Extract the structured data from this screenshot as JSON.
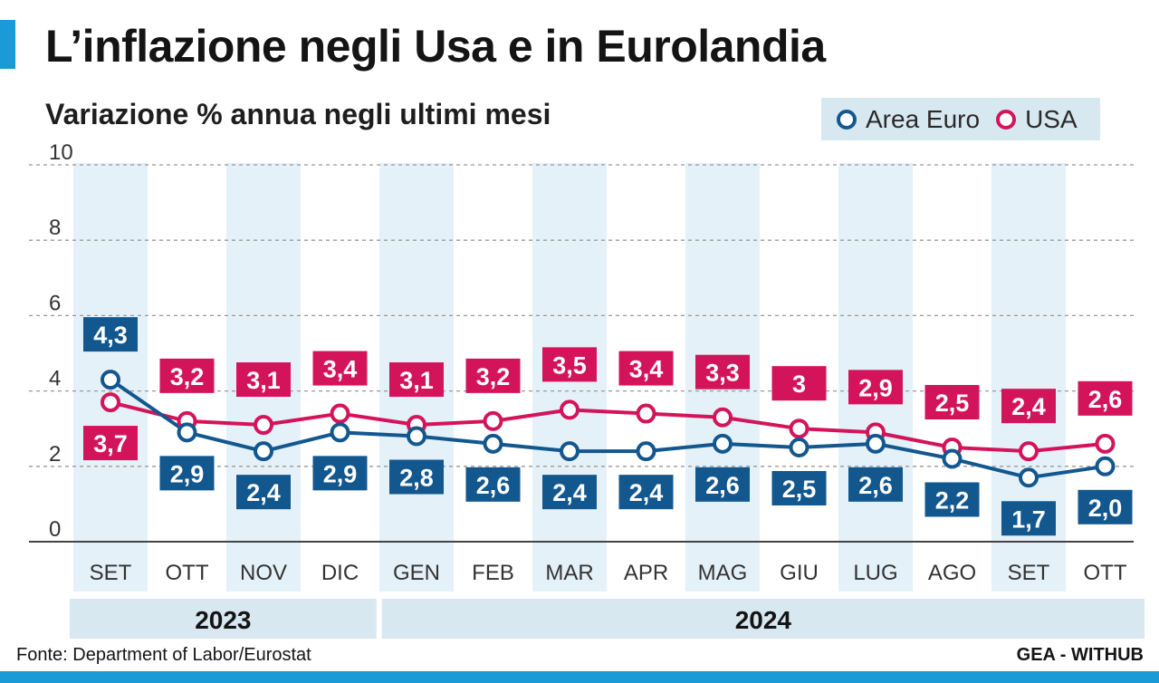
{
  "title": "L’inflazione negli Usa e in Eurolandia",
  "subtitle": "Variazione % annua negli ultimi mesi",
  "source": "Fonte: Department of Labor/Eurostat",
  "credit": "GEA - WITHUB",
  "colors": {
    "euro": "#13578f",
    "usa": "#d4145a",
    "accent": "#1a9ad6",
    "band": "#e4f1f8",
    "yearband": "#d8e8f0"
  },
  "legend": [
    {
      "name": "Area Euro",
      "color": "#13578f"
    },
    {
      "name": "USA",
      "color": "#d4145a"
    }
  ],
  "chart_data": {
    "type": "line",
    "title": "L’inflazione negli Usa e in Eurolandia",
    "subtitle": "Variazione % annua negli ultimi mesi",
    "categories": [
      "SET",
      "OTT",
      "NOV",
      "DIC",
      "GEN",
      "FEB",
      "MAR",
      "APR",
      "MAG",
      "GIU",
      "LUG",
      "AGO",
      "SET",
      "OTT"
    ],
    "years": [
      {
        "label": "2023",
        "months": 4
      },
      {
        "label": "2024",
        "months": 10
      }
    ],
    "yticks": [
      "0",
      "2",
      "4",
      "6",
      "8",
      "10"
    ],
    "ylim": [
      0,
      10
    ],
    "grid": true,
    "legend_position": "top-right",
    "series": [
      {
        "name": "Area Euro",
        "values": [
          4.3,
          2.9,
          2.4,
          2.9,
          2.8,
          2.6,
          2.4,
          2.4,
          2.6,
          2.5,
          2.6,
          2.2,
          1.7,
          2.0
        ],
        "labels": [
          "4,3",
          "2,9",
          "2,4",
          "2,9",
          "2,8",
          "2,6",
          "2,4",
          "2,4",
          "2,6",
          "2,5",
          "2,6",
          "2,2",
          "1,7",
          "2,0"
        ]
      },
      {
        "name": "USA",
        "values": [
          3.7,
          3.2,
          3.1,
          3.4,
          3.1,
          3.2,
          3.5,
          3.4,
          3.3,
          3.0,
          2.9,
          2.5,
          2.4,
          2.6
        ],
        "labels": [
          "3,7",
          "3,2",
          "3,1",
          "3,4",
          "3,1",
          "3,2",
          "3,5",
          "3,4",
          "3,3",
          "3",
          "2,9",
          "2,5",
          "2,4",
          "2,6"
        ]
      }
    ]
  }
}
